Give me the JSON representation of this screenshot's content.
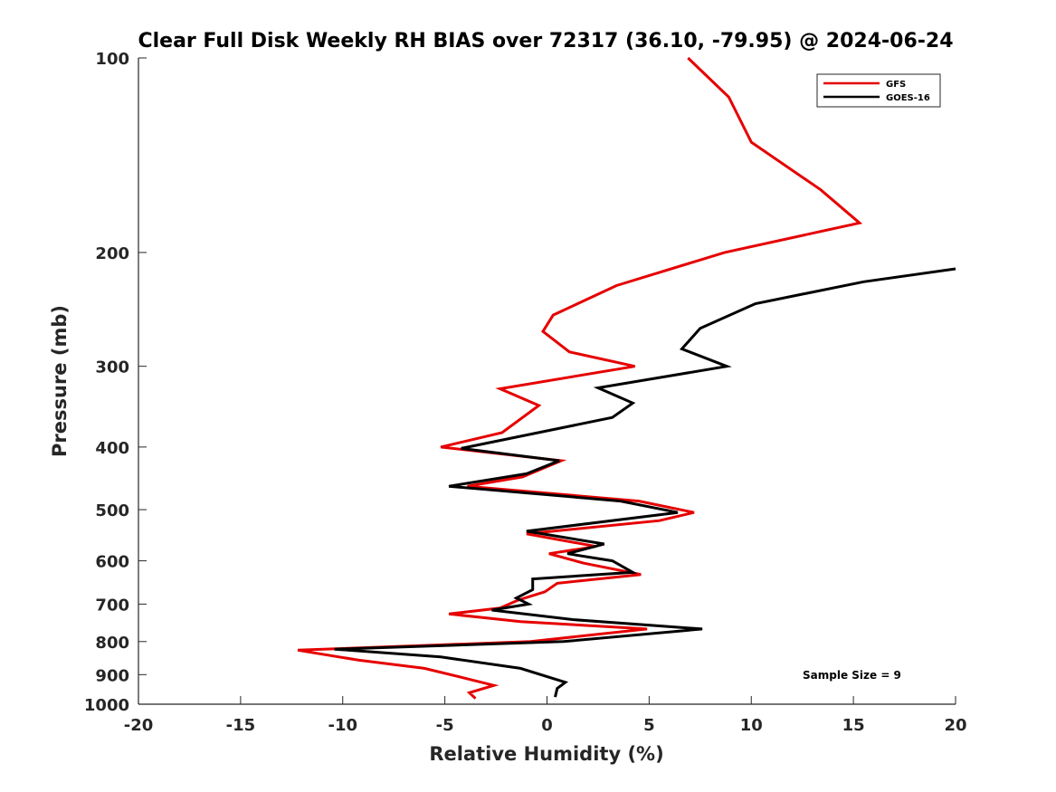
{
  "chart_data": {
    "type": "line",
    "title": "Clear Full Disk Weekly RH BIAS over 72317 (36.10, -79.95) @ 2024-06-24",
    "xlabel": "Relative Humidity (%)",
    "ylabel": "Pressure (mb)",
    "xlim": [
      -20,
      20
    ],
    "ylim": [
      100,
      1000
    ],
    "yscale": "log",
    "y_reversed": true,
    "xticks": [
      -20,
      -15,
      -10,
      -5,
      0,
      5,
      10,
      15,
      20
    ],
    "yticks": [
      100,
      200,
      300,
      400,
      500,
      600,
      700,
      800,
      900,
      1000
    ],
    "grid": false,
    "legend_position": "top-right",
    "annotation": "Sample Size = 9",
    "series": [
      {
        "name": "GFS",
        "color": "#e60000",
        "points": [
          [
            6.9,
            100
          ],
          [
            8.9,
            115
          ],
          [
            10.0,
            135
          ],
          [
            13.4,
            160
          ],
          [
            15.3,
            180
          ],
          [
            8.7,
            200
          ],
          [
            3.4,
            225
          ],
          [
            0.3,
            250
          ],
          [
            -0.2,
            265
          ],
          [
            1.1,
            285
          ],
          [
            4.3,
            300
          ],
          [
            -2.3,
            325
          ],
          [
            -0.4,
            345
          ],
          [
            -2.2,
            380
          ],
          [
            -5.2,
            400
          ],
          [
            0.7,
            420
          ],
          [
            -1.2,
            445
          ],
          [
            -3.9,
            460
          ],
          [
            4.5,
            485
          ],
          [
            7.2,
            505
          ],
          [
            5.5,
            520
          ],
          [
            -1.0,
            545
          ],
          [
            2.4,
            570
          ],
          [
            0.1,
            585
          ],
          [
            1.8,
            605
          ],
          [
            4.6,
            630
          ],
          [
            0.5,
            650
          ],
          [
            -0.1,
            670
          ],
          [
            -1.4,
            690
          ],
          [
            -2.3,
            710
          ],
          [
            -4.8,
            725
          ],
          [
            -1.3,
            745
          ],
          [
            4.9,
            765
          ],
          [
            -0.8,
            800
          ],
          [
            -12.2,
            825
          ],
          [
            -9.2,
            855
          ],
          [
            -6.0,
            880
          ],
          [
            -4.1,
            910
          ],
          [
            -2.6,
            935
          ],
          [
            -3.8,
            960
          ],
          [
            -3.5,
            980
          ]
        ]
      },
      {
        "name": "GOES-16",
        "color": "#000000",
        "points": [
          [
            20.0,
            212
          ],
          [
            15.5,
            222
          ],
          [
            10.2,
            240
          ],
          [
            7.5,
            262
          ],
          [
            6.6,
            282
          ],
          [
            8.8,
            300
          ],
          [
            2.5,
            324
          ],
          [
            4.2,
            342
          ],
          [
            3.2,
            360
          ],
          [
            -4.2,
            402
          ],
          [
            0.6,
            420
          ],
          [
            -1.0,
            440
          ],
          [
            -4.8,
            460
          ],
          [
            3.6,
            485
          ],
          [
            6.4,
            505
          ],
          [
            -1.0,
            540
          ],
          [
            2.8,
            565
          ],
          [
            1.0,
            585
          ],
          [
            3.2,
            600
          ],
          [
            4.2,
            625
          ],
          [
            -0.7,
            640
          ],
          [
            -0.7,
            665
          ],
          [
            -1.5,
            685
          ],
          [
            -0.9,
            700
          ],
          [
            -2.7,
            715
          ],
          [
            1.3,
            740
          ],
          [
            7.6,
            765
          ],
          [
            0.8,
            800
          ],
          [
            -10.4,
            822
          ],
          [
            -5.2,
            845
          ],
          [
            -1.3,
            880
          ],
          [
            0.9,
            925
          ],
          [
            0.5,
            945
          ],
          [
            0.4,
            975
          ]
        ]
      }
    ]
  }
}
